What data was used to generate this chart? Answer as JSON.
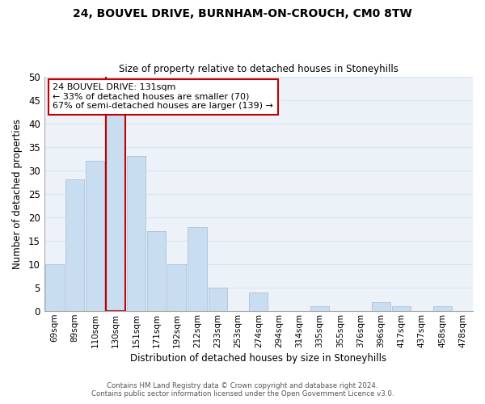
{
  "title_line1": "24, BOUVEL DRIVE, BURNHAM-ON-CROUCH, CM0 8TW",
  "title_line2": "Size of property relative to detached houses in Stoneyhills",
  "xlabel": "Distribution of detached houses by size in Stoneyhills",
  "ylabel": "Number of detached properties",
  "categories": [
    "69sqm",
    "89sqm",
    "110sqm",
    "130sqm",
    "151sqm",
    "171sqm",
    "192sqm",
    "212sqm",
    "233sqm",
    "253sqm",
    "274sqm",
    "294sqm",
    "314sqm",
    "335sqm",
    "355sqm",
    "376sqm",
    "396sqm",
    "417sqm",
    "437sqm",
    "458sqm",
    "478sqm"
  ],
  "values": [
    10,
    28,
    32,
    42,
    33,
    17,
    10,
    18,
    5,
    0,
    4,
    0,
    0,
    1,
    0,
    0,
    2,
    1,
    0,
    1,
    0
  ],
  "bar_color": "#c9ddf0",
  "bar_edge_color": "#aec8e0",
  "highlight_bar_index": 3,
  "highlight_edge_color": "#c00000",
  "vline_color": "#c00000",
  "ylim": [
    0,
    50
  ],
  "yticks": [
    0,
    5,
    10,
    15,
    20,
    25,
    30,
    35,
    40,
    45,
    50
  ],
  "annotation_title": "24 BOUVEL DRIVE: 131sqm",
  "annotation_line1": "← 33% of detached houses are smaller (70)",
  "annotation_line2": "67% of semi-detached houses are larger (139) →",
  "annotation_box_color": "#ffffff",
  "annotation_box_edge_color": "#c00000",
  "footer_line1": "Contains HM Land Registry data © Crown copyright and database right 2024.",
  "footer_line2": "Contains public sector information licensed under the Open Government Licence v3.0.",
  "grid_color": "#d8e4f0",
  "background_color": "#edf2f9"
}
